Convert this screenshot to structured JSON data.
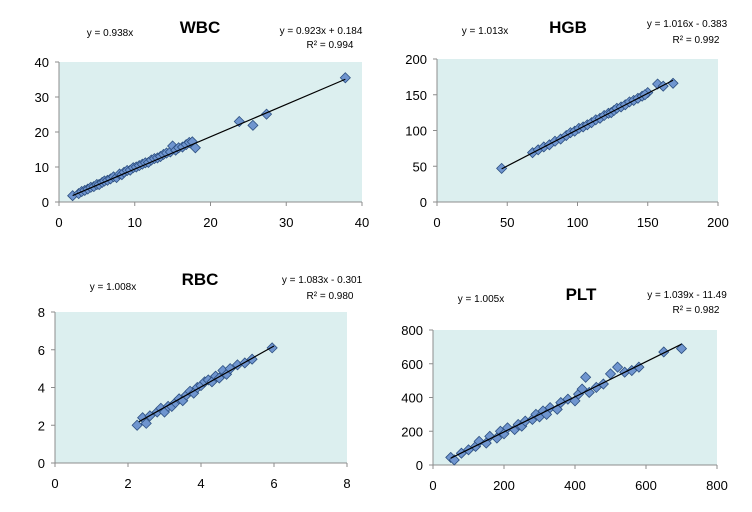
{
  "colors": {
    "plot_bg": "#dcefef",
    "marker_fill": "#6f95cf",
    "marker_stroke": "#2c4f80",
    "line": "#000000",
    "axis": "#8c8c8c"
  },
  "chart_data": [
    {
      "type": "scatter",
      "title": "WBC",
      "eq_left": "y = 0.938x",
      "eq_right": "y = 0.923x + 0.184",
      "r2": "R² = 0.994",
      "xlim": [
        0,
        40
      ],
      "ylim": [
        0,
        40
      ],
      "xticks": [
        "0",
        "10",
        "20",
        "30",
        "40"
      ],
      "yticks": [
        "0",
        "10",
        "20",
        "30",
        "40"
      ],
      "fit": {
        "slope": 0.923,
        "intercept": 0.184,
        "x_range": [
          1.8,
          37.8
        ]
      },
      "points": [
        [
          1.8,
          1.8
        ],
        [
          2.6,
          2.4
        ],
        [
          3,
          3
        ],
        [
          3.4,
          3.3
        ],
        [
          3.8,
          3.7
        ],
        [
          4.2,
          4.2
        ],
        [
          4.6,
          4.4
        ],
        [
          5,
          5
        ],
        [
          5.3,
          5
        ],
        [
          5.7,
          5.6
        ],
        [
          6,
          6
        ],
        [
          6.4,
          6.2
        ],
        [
          6.8,
          6.6
        ],
        [
          7.2,
          7.2
        ],
        [
          7.6,
          7
        ],
        [
          8,
          8
        ],
        [
          8.3,
          7.8
        ],
        [
          8.6,
          8.5
        ],
        [
          9,
          9
        ],
        [
          9.4,
          9.1
        ],
        [
          9.8,
          9.8
        ],
        [
          10.2,
          10
        ],
        [
          10.6,
          10.4
        ],
        [
          11,
          10.8
        ],
        [
          11.4,
          11.2
        ],
        [
          11.8,
          11.3
        ],
        [
          12.2,
          12
        ],
        [
          12.6,
          12.4
        ],
        [
          13,
          12.6
        ],
        [
          13.4,
          13
        ],
        [
          13.8,
          13.6
        ],
        [
          14.2,
          14
        ],
        [
          14.7,
          14.3
        ],
        [
          15,
          16
        ],
        [
          15.4,
          14.8
        ],
        [
          15.8,
          15.5
        ],
        [
          16.3,
          15.7
        ],
        [
          16.8,
          16.4
        ],
        [
          17.2,
          17
        ],
        [
          17.6,
          17.2
        ],
        [
          18,
          15.5
        ],
        [
          23.8,
          23
        ],
        [
          25.6,
          21.9
        ],
        [
          27.4,
          25.1
        ],
        [
          37.8,
          35.5
        ]
      ]
    },
    {
      "type": "scatter",
      "title": "HGB",
      "eq_left": "y = 1.013x",
      "eq_right": "y = 1.016x - 0.383",
      "r2": "R² = 0.992",
      "xlim": [
        0,
        200
      ],
      "ylim": [
        0,
        200
      ],
      "xticks": [
        "0",
        "50",
        "100",
        "150",
        "200"
      ],
      "yticks": [
        "0",
        "50",
        "100",
        "150",
        "200"
      ],
      "fit": {
        "slope": 1.016,
        "intercept": -0.383,
        "x_range": [
          46,
          168
        ]
      },
      "points": [
        [
          46,
          47
        ],
        [
          68,
          69
        ],
        [
          72,
          73
        ],
        [
          76,
          77
        ],
        [
          80,
          80
        ],
        [
          84,
          85
        ],
        [
          88,
          88
        ],
        [
          92,
          93
        ],
        [
          95,
          97
        ],
        [
          98,
          99
        ],
        [
          101,
          103
        ],
        [
          104,
          105
        ],
        [
          107,
          108
        ],
        [
          110,
          111
        ],
        [
          113,
          115
        ],
        [
          116,
          117
        ],
        [
          119,
          121
        ],
        [
          122,
          124
        ],
        [
          124,
          125
        ],
        [
          126,
          128
        ],
        [
          128,
          131
        ],
        [
          131,
          133
        ],
        [
          134,
          136
        ],
        [
          137,
          140
        ],
        [
          140,
          142
        ],
        [
          143,
          145
        ],
        [
          146,
          148
        ],
        [
          150,
          153
        ],
        [
          148,
          150
        ],
        [
          157,
          165
        ],
        [
          161,
          162
        ],
        [
          168,
          166
        ]
      ]
    },
    {
      "type": "scatter",
      "title": "RBC",
      "eq_left": "y = 1.008x",
      "eq_right": "y = 1.083x - 0.301",
      "r2": "R² = 0.980",
      "xlim": [
        0,
        8
      ],
      "ylim": [
        0,
        8
      ],
      "xticks": [
        "0",
        "2",
        "4",
        "6",
        "8"
      ],
      "yticks": [
        "0",
        "2",
        "4",
        "6",
        "8"
      ],
      "fit": {
        "slope": 1.083,
        "intercept": -0.301,
        "x_range": [
          2.3,
          6
        ]
      },
      "points": [
        [
          2.25,
          2
        ],
        [
          2.4,
          2.4
        ],
        [
          2.5,
          2.1
        ],
        [
          2.6,
          2.5
        ],
        [
          2.8,
          2.7
        ],
        [
          2.9,
          2.9
        ],
        [
          3.0,
          2.7
        ],
        [
          3.1,
          3.0
        ],
        [
          3.2,
          3.0
        ],
        [
          3.3,
          3.2
        ],
        [
          3.4,
          3.4
        ],
        [
          3.5,
          3.3
        ],
        [
          3.6,
          3.6
        ],
        [
          3.7,
          3.8
        ],
        [
          3.8,
          3.7
        ],
        [
          3.9,
          4.0
        ],
        [
          4.0,
          4.1
        ],
        [
          4.1,
          4.3
        ],
        [
          4.2,
          4.4
        ],
        [
          4.3,
          4.3
        ],
        [
          4.4,
          4.6
        ],
        [
          4.5,
          4.5
        ],
        [
          4.6,
          4.9
        ],
        [
          4.7,
          4.7
        ],
        [
          4.8,
          5.0
        ],
        [
          5.0,
          5.2
        ],
        [
          5.2,
          5.3
        ],
        [
          5.4,
          5.5
        ],
        [
          5.95,
          6.1
        ]
      ]
    },
    {
      "type": "scatter",
      "title": "PLT",
      "eq_left": "y = 1.005x",
      "eq_right": "y = 1.039x - 11.49",
      "r2": "R² = 0.982",
      "xlim": [
        0,
        800
      ],
      "ylim": [
        0,
        800
      ],
      "xticks": [
        "0",
        "200",
        "400",
        "600",
        "800"
      ],
      "yticks": [
        "0",
        "200",
        "400",
        "600",
        "800"
      ],
      "fit": {
        "slope": 1.039,
        "intercept": -11.49,
        "x_range": [
          50,
          700
        ]
      },
      "points": [
        [
          50,
          45
        ],
        [
          60,
          30
        ],
        [
          80,
          70
        ],
        [
          100,
          90
        ],
        [
          120,
          110
        ],
        [
          130,
          140
        ],
        [
          150,
          130
        ],
        [
          160,
          170
        ],
        [
          180,
          160
        ],
        [
          190,
          200
        ],
        [
          200,
          185
        ],
        [
          210,
          220
        ],
        [
          230,
          210
        ],
        [
          240,
          240
        ],
        [
          250,
          230
        ],
        [
          260,
          260
        ],
        [
          280,
          270
        ],
        [
          290,
          300
        ],
        [
          300,
          285
        ],
        [
          310,
          320
        ],
        [
          320,
          300
        ],
        [
          330,
          340
        ],
        [
          350,
          330
        ],
        [
          360,
          370
        ],
        [
          380,
          390
        ],
        [
          400,
          380
        ],
        [
          410,
          420
        ],
        [
          420,
          450
        ],
        [
          430,
          520
        ],
        [
          440,
          430
        ],
        [
          460,
          460
        ],
        [
          480,
          480
        ],
        [
          500,
          540
        ],
        [
          520,
          580
        ],
        [
          540,
          550
        ],
        [
          560,
          560
        ],
        [
          580,
          580
        ],
        [
          650,
          670
        ],
        [
          700,
          690
        ]
      ]
    }
  ]
}
